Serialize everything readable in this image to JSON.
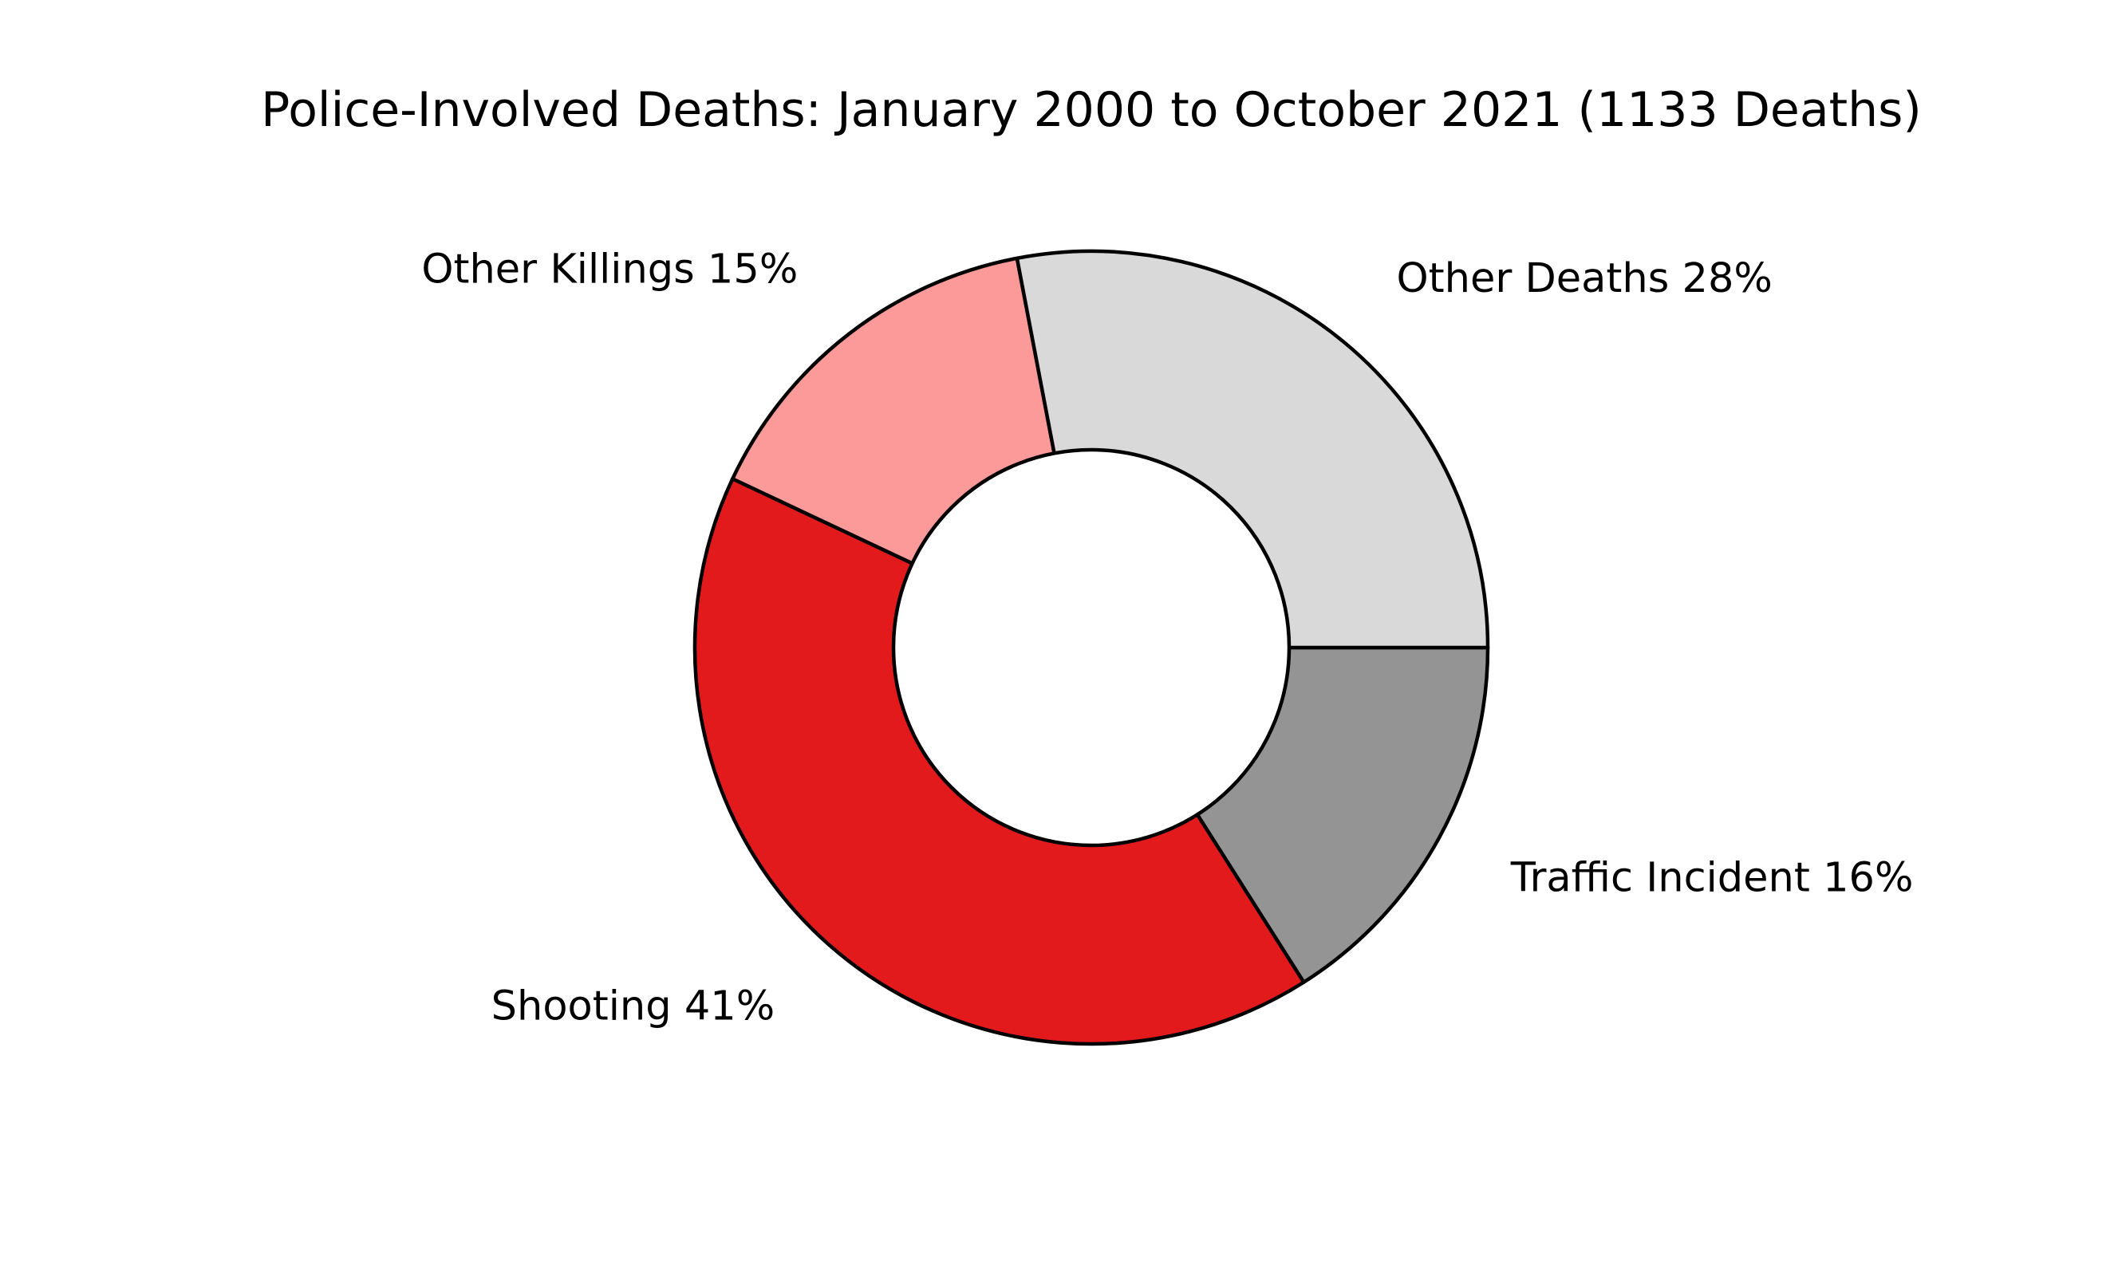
{
  "chart_data": {
    "type": "pie",
    "variant": "donut",
    "title": "Police-Involved Deaths: January 2000 to October 2021 (1133 Deaths)",
    "slices": [
      {
        "label": "Traffic Incident 16%",
        "category": "Traffic Incident",
        "percent": 16,
        "color": "#949494"
      },
      {
        "label": "Shooting 41%",
        "category": "Shooting",
        "percent": 41,
        "color": "#e31a1c"
      },
      {
        "label": "Other Killings 15%",
        "category": "Other Killings",
        "percent": 15,
        "color": "#fb9a99"
      },
      {
        "label": "Other Deaths 28%",
        "category": "Other Deaths",
        "percent": 28,
        "color": "#d9d9d9"
      }
    ],
    "start_angle_deg": 0,
    "direction": "clockwise",
    "edge_color": "#000000",
    "hole_color": "#ffffff",
    "legend": "none"
  }
}
